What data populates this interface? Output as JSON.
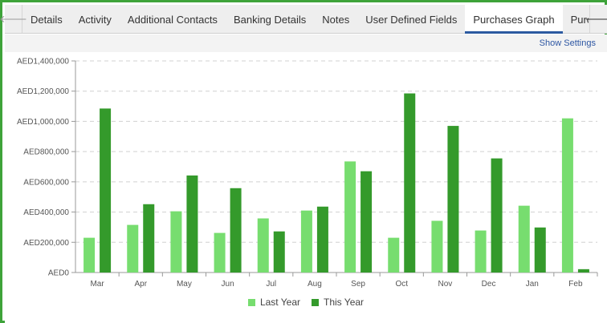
{
  "tabs": [
    {
      "label": "Details",
      "active": false
    },
    {
      "label": "Activity",
      "active": false
    },
    {
      "label": "Additional Contacts",
      "active": false
    },
    {
      "label": "Banking Details",
      "active": false
    },
    {
      "label": "Notes",
      "active": false
    },
    {
      "label": "User Defined Fields",
      "active": false
    },
    {
      "label": "Purchases Graph",
      "active": true
    },
    {
      "label": "Purchase C",
      "active": false
    }
  ],
  "nav": {
    "left_icon": "arrow-left-icon",
    "right_icon": "arrow-right-icon",
    "left_glyph": "🡐",
    "right_glyph": "🡒"
  },
  "toolbar": {
    "show_settings_label": "Show Settings"
  },
  "colors": {
    "last_year": "#77dd6f",
    "this_year": "#349a2b",
    "grid": "#d0d0d0",
    "border": "#3ea33a",
    "link": "#2d56a3"
  },
  "chart_data": {
    "type": "bar",
    "categories": [
      "Mar",
      "Apr",
      "May",
      "Jun",
      "Jul",
      "Aug",
      "Sep",
      "Oct",
      "Nov",
      "Dec",
      "Jan",
      "Feb"
    ],
    "series": [
      {
        "name": "Last Year",
        "values": [
          230000,
          315000,
          405000,
          262000,
          358000,
          410000,
          735000,
          230000,
          342000,
          278000,
          442000,
          1020000
        ]
      },
      {
        "name": "This Year",
        "values": [
          1085000,
          452000,
          642000,
          558000,
          272000,
          436000,
          670000,
          1185000,
          970000,
          755000,
          298000,
          22000
        ]
      }
    ],
    "ylim": [
      0,
      1400000
    ],
    "yticks": [
      0,
      200000,
      400000,
      600000,
      800000,
      1000000,
      1200000,
      1400000
    ],
    "ytick_labels": [
      "AED0",
      "AED200,000",
      "AED400,000",
      "AED600,000",
      "AED800,000",
      "AED1,000,000",
      "AED1,200,000",
      "AED1,400,000"
    ],
    "grid": true,
    "legend_position": "bottom-center"
  }
}
